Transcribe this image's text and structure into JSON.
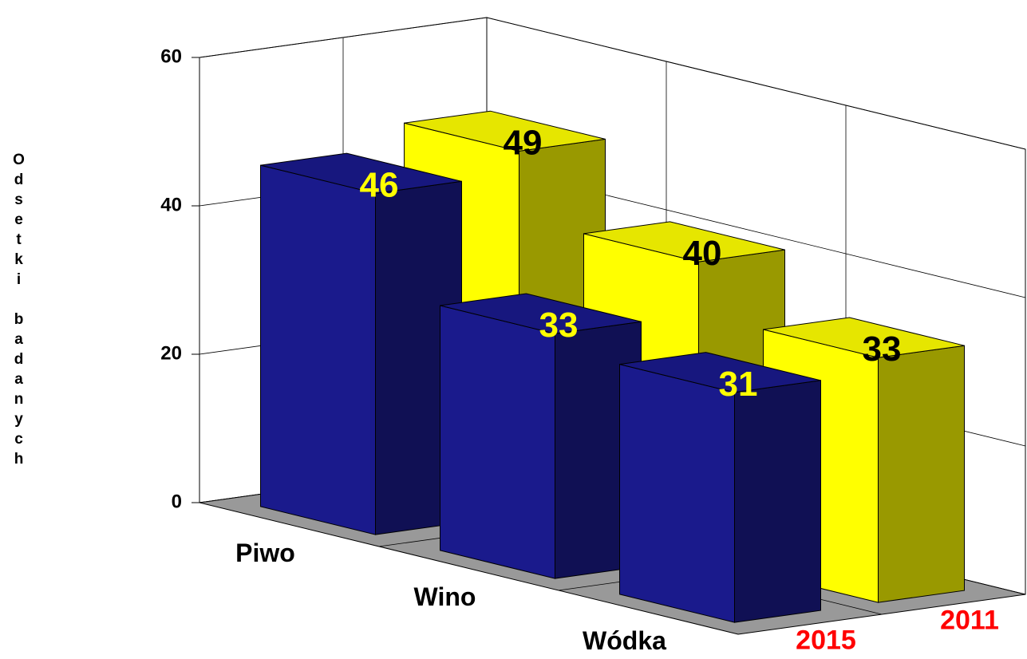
{
  "chart_data": {
    "type": "bar3d",
    "y_label": "Odsetki badanych",
    "categories": [
      "Piwo",
      "Wino",
      "Wódka"
    ],
    "series": [
      {
        "name": "2015",
        "color": "#1a1a8c",
        "label_color": "#ffff00",
        "values": [
          46,
          33,
          31
        ]
      },
      {
        "name": "2011",
        "color": "#ffff00",
        "label_color": "#000000",
        "values": [
          49,
          40,
          33
        ]
      }
    ],
    "ylim": [
      0,
      60
    ],
    "yticks": [
      0,
      20,
      40,
      60
    ],
    "grid": true,
    "series_label_color": "#ff0000"
  }
}
